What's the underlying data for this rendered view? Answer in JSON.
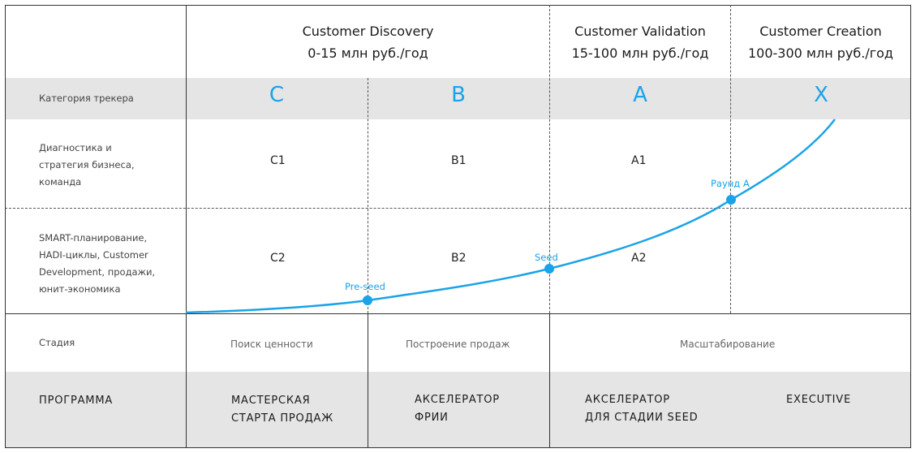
{
  "header": {
    "discovery": {
      "title": "Customer Discovery",
      "revenue": "0-15 млн руб./год"
    },
    "validation": {
      "title": "Customer Validation",
      "revenue": "15-100 млн руб./год"
    },
    "creation": {
      "title": "Customer Creation",
      "revenue": "100-300 млн руб./год"
    }
  },
  "rows": {
    "category_label": "Категория трекера",
    "diagnostics_label": [
      "Диагностика и",
      "стратегия бизнеса,",
      "команда"
    ],
    "planning_label": [
      "SMART-планирование,",
      "HADI-циклы, Customer",
      "Development, продажи,",
      "юнит-экономика"
    ],
    "stage_label": "Стадия",
    "program_label": "ПРОГРАММА"
  },
  "categories": [
    "C",
    "B",
    "A",
    "X"
  ],
  "cells": {
    "row1": [
      "C1",
      "B1",
      "A1"
    ],
    "row2": [
      "C2",
      "B2",
      "A2"
    ]
  },
  "stages": [
    "Поиск ценности",
    "Построение продаж",
    "Масштабирование"
  ],
  "programs": {
    "p1": [
      "МАСТЕРСКАЯ",
      "СТАРТА ПРОДАЖ"
    ],
    "p2": [
      "АКСЕЛЕРАТОР",
      "ФРИИ"
    ],
    "p3": [
      "АКСЕЛЕРАТОР",
      "ДЛЯ СТАДИИ SEED"
    ],
    "p4": "EXECUTIVE"
  },
  "rounds": [
    "Pre-seed",
    "Seed",
    "Раунд А"
  ],
  "colors": {
    "accent": "#1aa3e8",
    "band": "#e5e5e5"
  }
}
